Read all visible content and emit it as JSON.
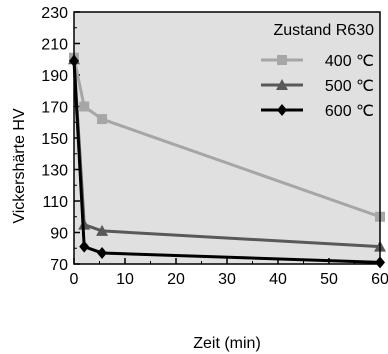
{
  "chart_data": {
    "type": "line",
    "xlabel": "Zeit (min)",
    "ylabel": "Vickershärte HV",
    "xlim": [
      0,
      60
    ],
    "ylim": [
      70,
      230
    ],
    "xticks": [
      "0",
      "10",
      "20",
      "30",
      "40",
      "50",
      "60"
    ],
    "yticks": [
      "70",
      "90",
      "110",
      "130",
      "150",
      "170",
      "190",
      "210",
      "230"
    ],
    "grid": false,
    "background": "#e0e0e0",
    "legend": {
      "title": "Zustand R630",
      "placement": "top-right"
    },
    "series": [
      {
        "name": "400 ℃",
        "color": "#a6a6a6",
        "marker": "square",
        "x": [
          0,
          2,
          5.5,
          60
        ],
        "y": [
          201,
          170,
          162,
          100
        ]
      },
      {
        "name": "500 ℃",
        "color": "#595959",
        "marker": "triangle",
        "x": [
          0,
          2,
          5.5,
          60
        ],
        "y": [
          200,
          95,
          91,
          81
        ]
      },
      {
        "name": "600 ℃",
        "color": "#000000",
        "marker": "diamond",
        "x": [
          0,
          2,
          5.5,
          60
        ],
        "y": [
          199,
          81,
          77,
          71
        ]
      }
    ]
  }
}
